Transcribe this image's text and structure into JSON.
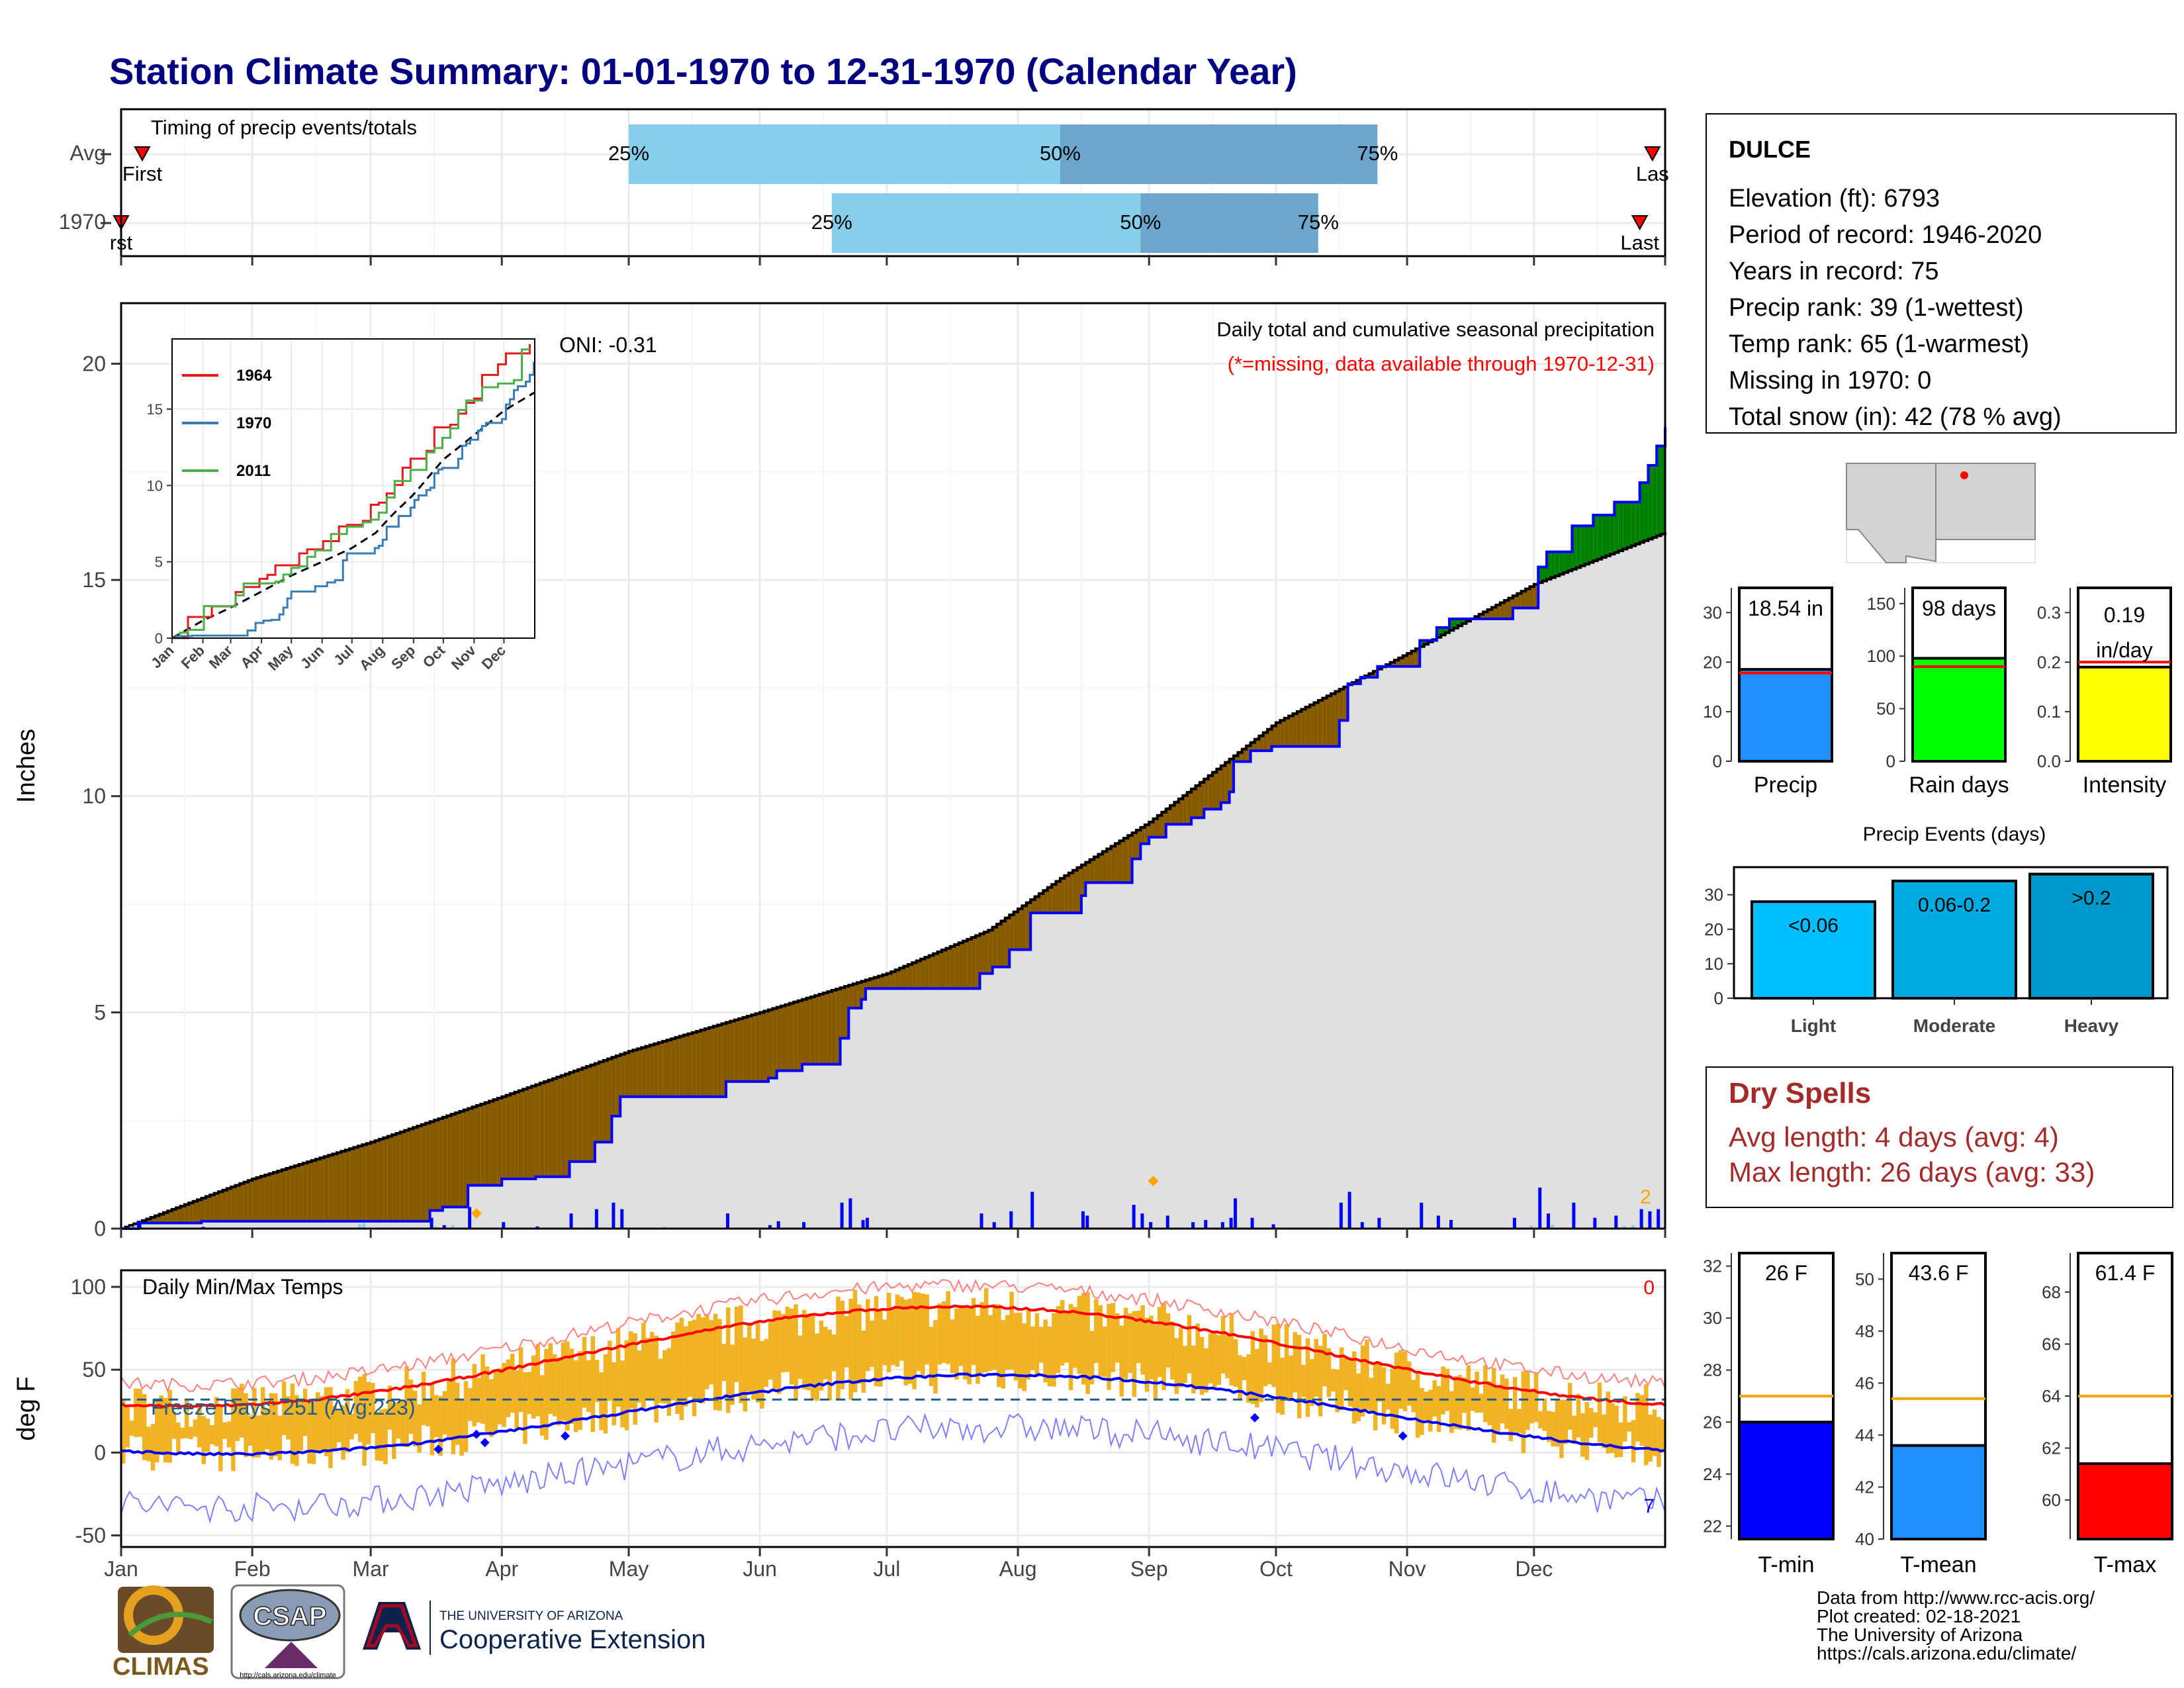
{
  "title": "Station Climate Summary: 01-01-1970 to 12-31-1970 (Calendar Year)",
  "timing": {
    "label": "Timing of precip events/totals",
    "rows": [
      "Avg",
      "1970"
    ],
    "pct_labels": [
      "25%",
      "50%",
      "75%"
    ],
    "first_label": "First",
    "first_label_1970": "rst",
    "last_label": "Last",
    "last_label_avg": "Las",
    "avg": {
      "first_day": 5,
      "p25": 120,
      "p50": 222,
      "p75": 297,
      "last_day": 362
    },
    "y1970": {
      "first_day": 0,
      "p25": 168,
      "p50": 241,
      "p75": 283,
      "last_day": 359
    }
  },
  "precip_panel": {
    "ylabel": "Inches",
    "yticks": [
      "0",
      "5",
      "10",
      "15",
      "20"
    ],
    "ylim": [
      0,
      20
    ],
    "title_line1": "Daily total and cumulative seasonal precipitation",
    "title_line2": "(*=missing, data available through 1970-12-31)",
    "oni": "ONI: -0.31",
    "corner_count": "2",
    "colors": {
      "above": "#008000",
      "below": "#875a00",
      "normal_fill": "#e0e0e0",
      "obs_line": "#0000ff"
    }
  },
  "inset": {
    "series": [
      {
        "name": "1964",
        "color": "#e41a1c"
      },
      {
        "name": "1970",
        "color": "#377eb8"
      },
      {
        "name": "2011",
        "color": "#4daf4a"
      }
    ],
    "yticks": [
      "0",
      "5",
      "10",
      "15"
    ],
    "months": [
      "Jan",
      "Feb",
      "Mar",
      "Apr",
      "May",
      "Jun",
      "Jul",
      "Aug",
      "Sep",
      "Oct",
      "Nov",
      "Dec"
    ]
  },
  "temp_panel": {
    "ylabel": "deg F",
    "yticks": [
      "-50",
      "0",
      "50",
      "100"
    ],
    "ylim": [
      -55,
      110
    ],
    "title": "Daily Min/Max Temps",
    "freeze": "Freeze Days: 251 (Avg:223)",
    "count_top": "0",
    "count_bottom": "7",
    "months": [
      "Jan",
      "Feb",
      "Mar",
      "Apr",
      "May",
      "Jun",
      "Jul",
      "Aug",
      "Sep",
      "Oct",
      "Nov",
      "Dec"
    ]
  },
  "station": {
    "name": "DULCE",
    "lines": [
      "Elevation (ft): 6793",
      "Period of record: 1946-2020",
      "Years in record: 75",
      "Precip rank: 39 (1-wettest)",
      "Temp rank: 65 (1-warmest)",
      "Missing in 1970: 0",
      "Total snow (in): 42 (78 % avg)"
    ]
  },
  "summary_bars": [
    {
      "label": "Precip",
      "value_label": "18.54 in",
      "value": 18.54,
      "avg": 17.8,
      "ymax": 35,
      "ticks": [
        "0",
        "10",
        "20",
        "30"
      ],
      "tickvals": [
        0,
        10,
        20,
        30
      ],
      "color": "#1e90ff"
    },
    {
      "label": "Rain days",
      "value_label": "98 days",
      "value": 98,
      "avg": 90,
      "ymax": 165,
      "ticks": [
        "0",
        "50",
        "100",
        "150"
      ],
      "tickvals": [
        0,
        50,
        100,
        150
      ],
      "color": "#00ff00"
    },
    {
      "label": "Intensity",
      "value_label": "0.19 in/day",
      "value_line1": "0.19",
      "value_line2": "in/day",
      "value": 0.19,
      "avg": 0.2,
      "ymax": 0.35,
      "ticks": [
        "0.0",
        "0.1",
        "0.2",
        "0.3"
      ],
      "tickvals": [
        0,
        0.1,
        0.2,
        0.3
      ],
      "color": "#ffff00"
    }
  ],
  "events": {
    "title": "Precip Events (days)",
    "yticks": [
      "0",
      "10",
      "20",
      "30"
    ],
    "bars": [
      {
        "label": "Light",
        "value_label": "<0.06",
        "value": 28,
        "color": "#00bfff"
      },
      {
        "label": "Moderate",
        "value_label": "0.06-0.2",
        "value": 34,
        "color": "#00a9e0"
      },
      {
        "label": "Heavy",
        "value_label": ">0.2",
        "value": 36,
        "color": "#0099cc"
      }
    ]
  },
  "dry_spells": {
    "title": "Dry Spells",
    "lines": [
      "Avg length: 4 days (avg: 4)",
      "Max length: 26 days (avg: 33)"
    ]
  },
  "temp_bars": [
    {
      "label": "T-min",
      "value_label": "26 F",
      "value": 26,
      "avg": 27,
      "ylim": [
        21.5,
        32.5
      ],
      "ticks": [
        "22",
        "24",
        "26",
        "28",
        "30",
        "32"
      ],
      "tickvals": [
        22,
        24,
        26,
        28,
        30,
        32
      ],
      "color": "#0000ff"
    },
    {
      "label": "T-mean",
      "value_label": "43.6 F",
      "value": 43.6,
      "avg": 45.4,
      "ylim": [
        40,
        51
      ],
      "ticks": [
        "40",
        "42",
        "44",
        "46",
        "48",
        "50"
      ],
      "tickvals": [
        40,
        42,
        44,
        46,
        48,
        50
      ],
      "color": "#1e90ff"
    },
    {
      "label": "T-max",
      "value_label": "61.4 F",
      "value": 61.4,
      "avg": 64,
      "ylim": [
        58.5,
        69.5
      ],
      "ticks": [
        "60",
        "62",
        "64",
        "66",
        "68"
      ],
      "tickvals": [
        60,
        62,
        64,
        66,
        68
      ],
      "color": "#ff0000"
    }
  ],
  "footer": {
    "credits": [
      "Data from http://www.rcc-acis.org/",
      "Plot created: 02-18-2021",
      "The University of Arizona",
      "https://cals.arizona.edu/climate/"
    ],
    "logos": {
      "climas": "CLIMAS",
      "csap": "CSAP",
      "csap_url": "http://cals.arizona.edu/climate",
      "ua_line1": "THE UNIVERSITY OF ARIZONA",
      "ua_line2": "Cooperative Extension"
    }
  }
}
